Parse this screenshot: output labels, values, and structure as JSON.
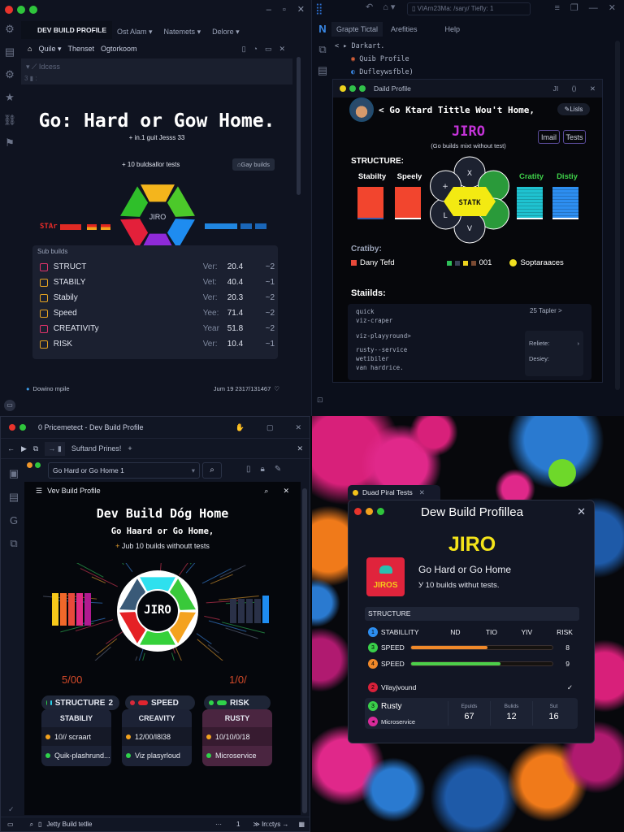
{
  "top_left": {
    "tab_title": "DEV BUILD PROFILE",
    "menus": [
      "Ost Alam",
      "Natemets",
      "Delore"
    ],
    "breadcrumb": {
      "home": "home-icon",
      "item1": "Quile",
      "item2": "Thenset",
      "item3": "Ogtorkoom"
    },
    "panel_label": "Idcess",
    "panel_line": "3",
    "headline": "Go: Hard or Gow Home.",
    "subline": "+ in.1 guit Jesss 33",
    "tests_line": "+ 10 buldsallor tests",
    "gay_builds_button": "Gay builds",
    "wheel_label": "JIRO",
    "wheel_colors": [
      "#f4b51c",
      "#4cc92a",
      "#1e8cf0",
      "#8f2ad8",
      "#e3203a",
      "#2fbf2a"
    ],
    "left_bar_label": "STAr",
    "sub_builds": {
      "title": "Sub builds",
      "rows": [
        {
          "name": "STRUCT",
          "ver_label": "Ver:",
          "ver": "20.4",
          "count": "~2",
          "color": "#e0336a"
        },
        {
          "name": "STABILY",
          "ver_label": "Vet:",
          "ver": "40.4",
          "count": "~1",
          "color": "#e6a321"
        },
        {
          "name": "Stabily",
          "ver_label": "Ver:",
          "ver": "20.3",
          "count": "~2",
          "color": "#e6a321"
        },
        {
          "name": "Speed",
          "ver_label": "Yee:",
          "ver": "71.4",
          "count": "~2",
          "color": "#e6a321"
        },
        {
          "name": "CREATIVITy",
          "ver_label": "Year",
          "ver": "51.8",
          "count": "~2",
          "color": "#e0336a"
        },
        {
          "name": "RISK",
          "ver_label": "Ver:",
          "ver": "10.4",
          "count": "~1",
          "color": "#e6a321"
        }
      ]
    },
    "status_left": "Dowino mpile",
    "status_right": "Jum 19 2317/131467"
  },
  "top_right": {
    "address": "VIArn23Ma: /sary/ Tiefly: 1",
    "tabs": [
      "Grapte Tictal",
      "Arefities",
      "Help"
    ],
    "tree": [
      "Darkart.",
      "Quib Profile",
      "Dufleywsfble)"
    ],
    "window_title": "Daild Profile",
    "window_ctrl": "JI",
    "heading": "< Go Ktard Tittle Wou't Home,",
    "lisls_button": "Lisls",
    "name": "JIRO",
    "tagline": "(Go builds mixt without test)",
    "imail_button": "Imail",
    "tests_button": "Tests",
    "structure_label": "STRUCTURE:",
    "bars": [
      {
        "label": "Stabilty",
        "color": "#f2452e"
      },
      {
        "label": "Speely",
        "color": "#f2452e"
      },
      {
        "label": "Cratity",
        "color": "#1fc2d0"
      },
      {
        "label": "Distiy",
        "color": "#2d8ef0"
      }
    ],
    "wheel_center": "STATK",
    "wheel_keys": [
      "X",
      "+",
      "L",
      "V"
    ],
    "legend_title": "Cratiby:",
    "legend": {
      "a": "Dany Tefd",
      "b": "001",
      "c": "Soptaraaces"
    },
    "builds_title": "Staiilds:",
    "builds_list": [
      "quick",
      "viz-craper",
      "viz-playyround>",
      "rusty--service",
      "wetibiler",
      "van hardrice."
    ],
    "side_top": "25 Tapler >",
    "side_rel": "Reliete:",
    "side_des": "Desiey:"
  },
  "bottom_left": {
    "title": "0 Pricemetect - Dev Build Profile",
    "tab": "Suftand Prines!",
    "address": "Go Hard or Go Home 1",
    "panel_title": "Vev Build Profile",
    "headline": "Dev Build Dóg Home",
    "subline": "Go Haard or Go Home,",
    "tests_line": "Jub 10 builds withoutt tests",
    "tests_prefix": "+",
    "wheel_label": "JIRO",
    "wheel_colors": [
      "#2ee0ee",
      "#39c93a",
      "#f4a21e",
      "#35d13a",
      "#e52125",
      "#3a5a78"
    ],
    "left_score": "5/00",
    "right_score": "1/0/",
    "pills": [
      {
        "label": "STRUCTURE",
        "count": "2"
      },
      {
        "label": "SPEED"
      },
      {
        "label": "RISK"
      }
    ],
    "cards": [
      {
        "title": "STABILIY",
        "line1": "10// scraart",
        "line2": "Quik-plashrund..."
      },
      {
        "title": "CREAVITY",
        "line1": "12/00/l8l38",
        "line2": "Viz plasyrloud"
      },
      {
        "title": "RUSTY",
        "line1": "10/10/0/18",
        "line2": "Microservice"
      }
    ],
    "status": {
      "left": "Jetty Build tetlle",
      "more": "···",
      "page": "1",
      "right": "In:ctys"
    }
  },
  "bottom_right": {
    "tab": "Duad Piral Tests",
    "title": "Dew Build Profillea",
    "name": "JIRO",
    "logo_text": "JIROS",
    "tagline": "Go Hard or Go Home",
    "sub": "У 10 builds withut tests.",
    "section": "STRUCTURE",
    "header": {
      "label": "STABILLITY",
      "c1": "ND",
      "c2": "TIO",
      "c3": "YIV",
      "c4": "RISK"
    },
    "progress": [
      {
        "label": "SPEED",
        "value": 0.54,
        "score": "8",
        "color": "#f0892a"
      },
      {
        "label": "SPEED",
        "value": 0.63,
        "score": "9",
        "color": "#4ccf4a"
      }
    ],
    "vila": "Vilayjvound",
    "rusty": "Rusty",
    "micro": "Microservice",
    "stats": [
      {
        "label": "Epulds",
        "value": "67"
      },
      {
        "label": "Bulids",
        "value": "12"
      },
      {
        "label": "Sut",
        "value": "16"
      }
    ]
  }
}
